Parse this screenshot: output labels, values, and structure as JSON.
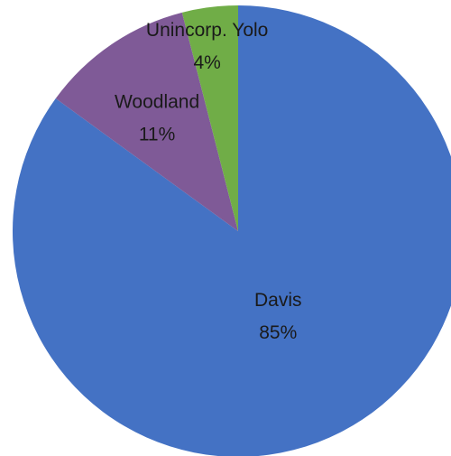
{
  "chart_data": {
    "type": "pie",
    "slices": [
      {
        "label": "Davis",
        "value": 85,
        "percent_label": "85%",
        "color": "#4472C4"
      },
      {
        "label": "Woodland",
        "value": 11,
        "percent_label": "11%",
        "color": "#7F5A97"
      },
      {
        "label": "Unincorp. Yolo",
        "value": 4,
        "percent_label": "4%",
        "color": "#70AD47"
      }
    ],
    "start_angle_deg": 0,
    "direction": "clockwise",
    "legend": "none"
  }
}
